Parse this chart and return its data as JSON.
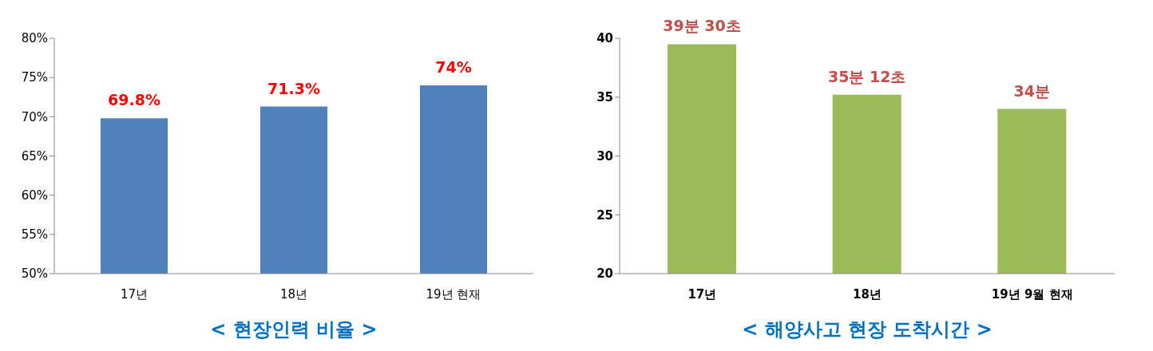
{
  "chart_data": [
    {
      "type": "bar",
      "title": "< 현장인력 비율 >",
      "categories": [
        "17년",
        "18년",
        "19년 현재"
      ],
      "values": [
        69.8,
        71.3,
        74
      ],
      "color": "#4f81bd",
      "value_labels": [
        "69.8%",
        "71.3%",
        "74%"
      ],
      "ylim": [
        50,
        80
      ],
      "yticks": [
        {
          "value": 50,
          "label": "50%"
        },
        {
          "value": 55,
          "label": "55%"
        },
        {
          "value": 60,
          "label": "60%"
        },
        {
          "value": 65,
          "label": "65%"
        },
        {
          "value": 70,
          "label": "70%"
        },
        {
          "value": 75,
          "label": "75%"
        },
        {
          "value": 80,
          "label": "80%"
        }
      ],
      "grid": false,
      "legend": false
    },
    {
      "type": "bar",
      "title": "< 해양사고 현장 도착시간 >",
      "categories": [
        "17년",
        "18년",
        "19년 9월 현재"
      ],
      "values": [
        39.5,
        35.2,
        34
      ],
      "color": "#9bbb59",
      "value_labels": [
        "39분 30초",
        "35분 12초",
        "34분"
      ],
      "ylim": [
        20,
        40
      ],
      "yticks": [
        20,
        25,
        30,
        35,
        40
      ],
      "grid": false,
      "legend": false
    }
  ]
}
